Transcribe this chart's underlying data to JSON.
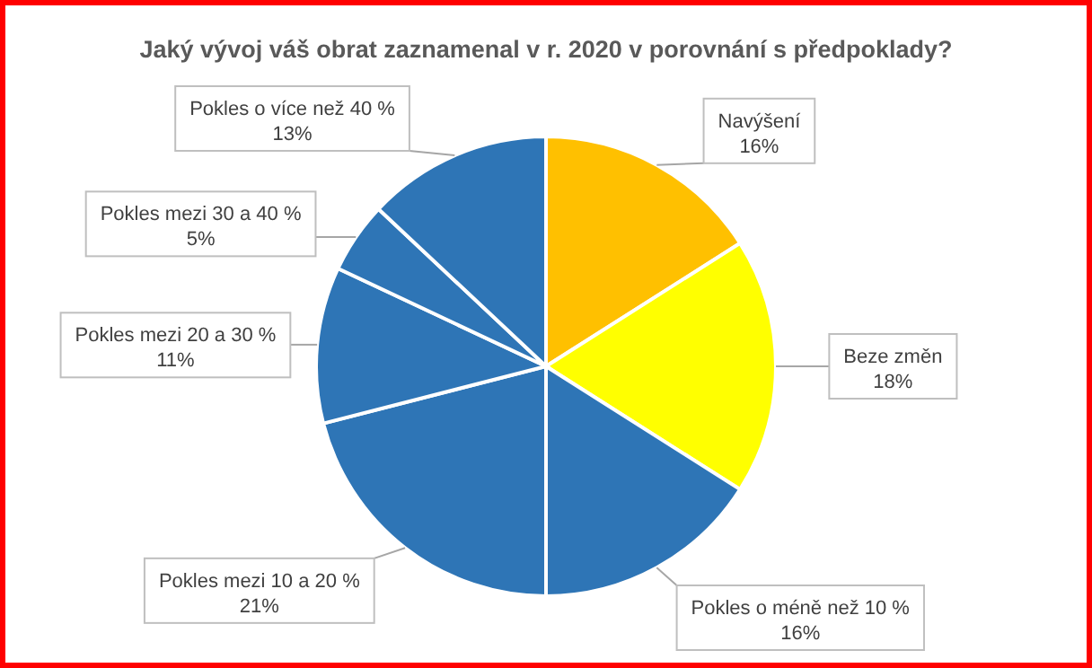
{
  "chart_data": {
    "type": "pie",
    "title": "Jaký vývoj váš obrat zaznamenal v r. 2020 v porovnání s předpoklady?",
    "categories": [
      "Navýšení",
      "Beze změn",
      "Pokles o méně než 10 %",
      "Pokles mezi 10 a 20 %",
      "Pokles mezi 20 a 30 %",
      "Pokles mezi 30 a 40 %",
      "Pokles o více než 40 %"
    ],
    "values": [
      16,
      18,
      16,
      21,
      11,
      5,
      13
    ],
    "value_labels": [
      "16%",
      "18%",
      "16%",
      "21%",
      "11%",
      "5%",
      "13%"
    ],
    "colors": [
      "#ffc000",
      "#ffff00",
      "#2e75b6",
      "#2e75b6",
      "#2e75b6",
      "#2e75b6",
      "#2e75b6"
    ]
  }
}
